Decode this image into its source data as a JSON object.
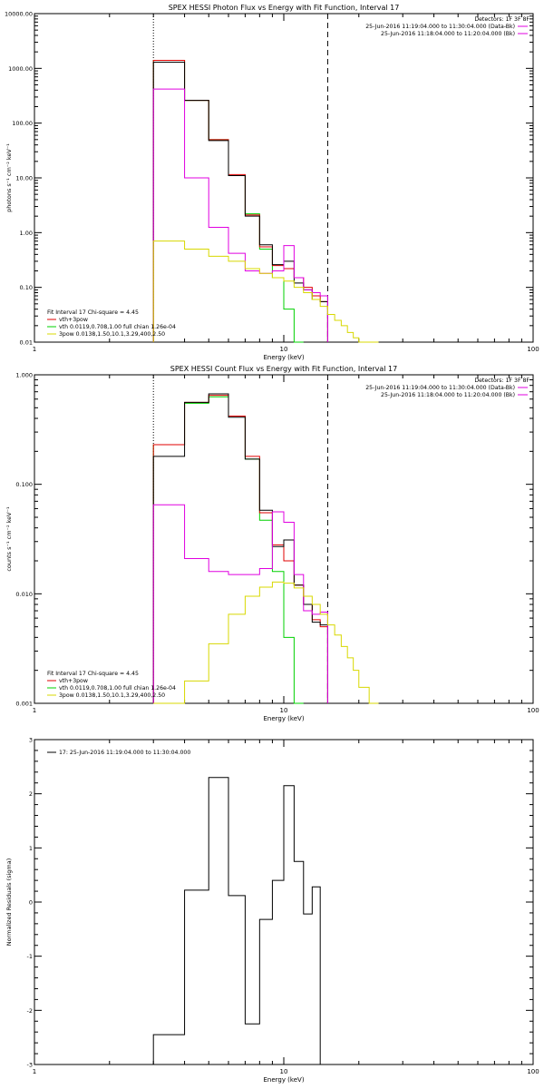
{
  "colors": {
    "total": "#000000",
    "total_model": "#e00000",
    "vth": "#00d000",
    "3pow": "#d8d800",
    "data": "#e000e0"
  },
  "chart_data": [
    {
      "type": "line",
      "title": "SPEX HESSI Photon Flux vs Energy with Fit Function, Interval 17",
      "xlabel": "Energy (keV)",
      "ylabel": "photons s⁻¹ cm⁻² keV⁻¹",
      "xscale": "log",
      "yscale": "log",
      "xlim": [
        1,
        100
      ],
      "ylim": [
        0.01,
        10000
      ],
      "x_ticks": [
        "1",
        "10",
        "100"
      ],
      "y_ticks": [
        "0.01",
        "0.10",
        "1.00",
        "10.00",
        "100.00",
        "1000.00",
        "10000.00"
      ],
      "vlines": [
        {
          "x": 3,
          "style": "dotted"
        },
        {
          "x": 15,
          "style": "dashed"
        }
      ],
      "legend_right": [
        {
          "text": "Detectors: 1F 3F 8F",
          "color": ""
        },
        {
          "text": "25-Jun-2016 11:19:04.000 to 11:30:04.000 (Data-Bk)",
          "color": "#e000e0"
        },
        {
          "text": "25-Jun-2016 11:18:04.000 to 11:20:04.000 (Bk)",
          "color": "#e000e0"
        }
      ],
      "legend_left": [
        {
          "text": "Fit Interval 17    Chi-square = 4.45",
          "color": ""
        },
        {
          "text": "vth+3pow",
          "color": "#e00000"
        },
        {
          "text": "vth 0.0119,0.708,1.00  full chian 1.26e-04",
          "color": "#00d000"
        },
        {
          "text": "3pow 0.0138,1.50,10.1,3.29,400,2.50",
          "color": "#d8d800"
        }
      ],
      "bin_edges": [
        3,
        4,
        5,
        6,
        7,
        8,
        9,
        10,
        11,
        12,
        13,
        14,
        15,
        16,
        17,
        18,
        19,
        20,
        22,
        24
      ],
      "series": [
        {
          "name": "vth",
          "color": "#00d000",
          "values": [
            1400,
            260,
            50,
            11,
            2.2,
            0.5,
            0.15,
            0.04,
            0.01
          ]
        },
        {
          "name": "vth+3pow",
          "color": "#e00000",
          "values": [
            1400,
            260,
            50,
            11.5,
            2.1,
            0.55,
            0.25,
            0.22,
            0.15,
            0.1,
            0.07,
            0.055
          ]
        },
        {
          "name": "",
          "color": "#000000",
          "values": [
            1300,
            260,
            48,
            11,
            2.0,
            0.6,
            0.26,
            0.3,
            0.12,
            0.09,
            0.06,
            0.055
          ]
        },
        {
          "name": "",
          "color": "#e000e0",
          "values": [
            420,
            10,
            1.25,
            0.42,
            0.2,
            0.18,
            0.2,
            0.58,
            0.15,
            0.09,
            0.08,
            0.07
          ]
        },
        {
          "name": "3pow",
          "color": "#d8d800",
          "values": [
            0.7,
            0.5,
            0.37,
            0.3,
            0.22,
            0.18,
            0.15,
            0.13,
            0.1,
            0.08,
            0.06,
            0.045,
            0.032,
            0.025,
            0.02,
            0.015,
            0.012,
            0.01,
            0.009
          ]
        }
      ]
    },
    {
      "type": "line",
      "title": "SPEX HESSI Count Flux vs Energy with Fit Function, Interval 17",
      "xlabel": "Energy (keV)",
      "ylabel": "counts s⁻¹ cm⁻² keV⁻¹",
      "xscale": "log",
      "yscale": "log",
      "xlim": [
        1,
        100
      ],
      "ylim": [
        0.001,
        1
      ],
      "x_ticks": [
        "1",
        "10",
        "100"
      ],
      "y_ticks": [
        "0.001",
        "0.010",
        "0.100",
        "1.000"
      ],
      "vlines": [
        {
          "x": 3,
          "style": "dotted"
        },
        {
          "x": 15,
          "style": "dashed"
        }
      ],
      "legend_right": [
        {
          "text": "Detectors: 1F 3F 8F",
          "color": ""
        },
        {
          "text": "25-Jun-2016 11:19:04.000 to 11:30:04.000 (Data-Bk)",
          "color": "#e000e0"
        },
        {
          "text": "25-Jun-2016 11:18:04.000 to 11:20:04.000 (Bk)",
          "color": "#e000e0"
        }
      ],
      "legend_left": [
        {
          "text": "Fit Interval 17    Chi-square = 4.45",
          "color": ""
        },
        {
          "text": "vth+3pow",
          "color": "#e00000"
        },
        {
          "text": "vth 0.0119,0.708,1.00  full chian 1.26e-04",
          "color": "#00d000"
        },
        {
          "text": "3pow 0.0138,1.50,10.1,3.29,400,2.50",
          "color": "#d8d800"
        }
      ],
      "bin_edges": [
        3,
        4,
        5,
        6,
        7,
        8,
        9,
        10,
        11,
        12,
        13,
        14,
        15,
        16,
        17,
        18,
        19,
        20,
        22,
        24
      ],
      "series": [
        {
          "name": "vth",
          "color": "#00d000",
          "values": [
            0.23,
            0.55,
            0.63,
            0.42,
            0.17,
            0.047,
            0.016,
            0.004,
            0.001
          ]
        },
        {
          "name": "vth+3pow",
          "color": "#e00000",
          "values": [
            0.23,
            0.56,
            0.65,
            0.42,
            0.18,
            0.055,
            0.028,
            0.02,
            0.012,
            0.008,
            0.0058,
            0.005
          ]
        },
        {
          "name": "",
          "color": "#000000",
          "values": [
            0.18,
            0.56,
            0.67,
            0.41,
            0.17,
            0.058,
            0.027,
            0.031,
            0.012,
            0.008,
            0.0055,
            0.0052
          ]
        },
        {
          "name": "",
          "color": "#e000e0",
          "values": [
            0.065,
            0.021,
            0.016,
            0.015,
            0.015,
            0.017,
            0.056,
            0.045,
            0.015,
            0.007,
            0.0065,
            0.0068
          ]
        },
        {
          "name": "3pow",
          "color": "#d8d800",
          "values": [
            0.001,
            0.0016,
            0.0035,
            0.0065,
            0.0095,
            0.0115,
            0.0128,
            0.0125,
            0.0113,
            0.0095,
            0.008,
            0.0065,
            0.0052,
            0.0042,
            0.0033,
            0.0026,
            0.002,
            0.0014,
            0.001
          ]
        }
      ]
    },
    {
      "type": "line",
      "title": "",
      "xlabel": "Energy (keV)",
      "ylabel": "Normalized Residuals (sigma)",
      "xscale": "log",
      "yscale": "linear",
      "xlim": [
        1,
        100
      ],
      "ylim": [
        -3,
        3
      ],
      "x_ticks": [
        "1",
        "10",
        "100"
      ],
      "y_ticks": [
        "-3",
        "-2",
        "-1",
        "0",
        "1",
        "2",
        "3"
      ],
      "legend_left": [
        {
          "text": "17: 25-Jun-2016 11:19:04.000 to 11:30:04.000",
          "color": "#000000"
        }
      ],
      "bin_edges": [
        3,
        4,
        5,
        6,
        7,
        8,
        9,
        10,
        11,
        12,
        13,
        14,
        15
      ],
      "series": [
        {
          "name": "17: 25-Jun-2016 11:19:04.000 to 11:30:04.000",
          "color": "#000000",
          "values": [
            -2.45,
            0.22,
            2.3,
            0.12,
            -2.25,
            -0.32,
            0.4,
            2.15,
            0.75,
            -0.22,
            0.28,
            -3
          ]
        }
      ]
    }
  ]
}
